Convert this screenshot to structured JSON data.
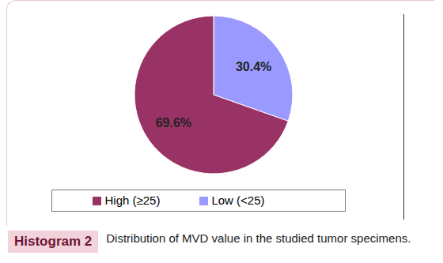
{
  "chart_data": {
    "type": "pie",
    "title": "Distribution of MVD value in the studied tumor specimens.",
    "annotations": [
      "Histogram 2"
    ],
    "categories": [
      "Low (<25)",
      "High (≥25)"
    ],
    "values": [
      30.4,
      69.6
    ],
    "value_labels": [
      "30.4%",
      "69.6%"
    ],
    "colors": [
      "#9999ff",
      "#993366"
    ],
    "legend": "bottom",
    "data_labels": true
  }
}
